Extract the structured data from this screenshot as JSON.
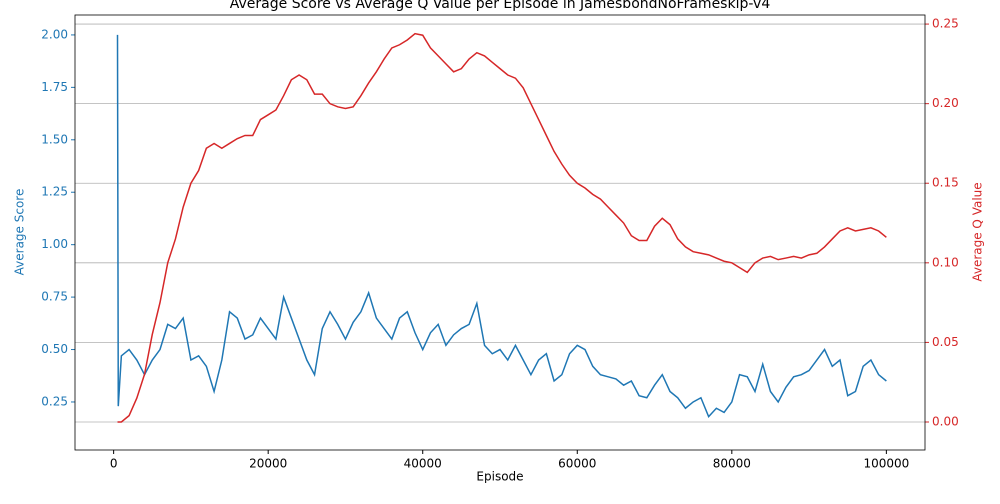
{
  "chart_data": {
    "type": "line",
    "title": "Average Score vs Average Q Value per Episode in JamesbondNoFrameskip-v4",
    "xlabel": "Episode",
    "ylabel": "Average Score",
    "y2label": "Average Q Value",
    "x": [
      500,
      600,
      1000,
      2000,
      3000,
      4000,
      5000,
      6000,
      7000,
      8000,
      9000,
      10000,
      11000,
      12000,
      13000,
      14000,
      15000,
      16000,
      17000,
      18000,
      19000,
      20000,
      21000,
      22000,
      23000,
      24000,
      25000,
      26000,
      27000,
      28000,
      29000,
      30000,
      31000,
      32000,
      33000,
      34000,
      35000,
      36000,
      37000,
      38000,
      39000,
      40000,
      41000,
      42000,
      43000,
      44000,
      45000,
      46000,
      47000,
      48000,
      49000,
      50000,
      51000,
      52000,
      53000,
      54000,
      55000,
      56000,
      57000,
      58000,
      59000,
      60000,
      61000,
      62000,
      63000,
      64000,
      65000,
      66000,
      67000,
      68000,
      69000,
      70000,
      71000,
      72000,
      73000,
      74000,
      75000,
      76000,
      77000,
      78000,
      79000,
      80000,
      81000,
      82000,
      83000,
      84000,
      85000,
      86000,
      87000,
      88000,
      89000,
      90000,
      91000,
      92000,
      93000,
      94000,
      95000,
      96000,
      97000,
      98000,
      99000,
      100000
    ],
    "series": [
      {
        "name": "Average Score",
        "color": "#1f77b4",
        "axis": "y",
        "values": [
          2.0,
          0.23,
          0.47,
          0.5,
          0.45,
          0.38,
          0.45,
          0.5,
          0.62,
          0.6,
          0.65,
          0.45,
          0.47,
          0.42,
          0.3,
          0.45,
          0.68,
          0.65,
          0.55,
          0.57,
          0.65,
          0.6,
          0.55,
          0.75,
          0.65,
          0.55,
          0.45,
          0.38,
          0.6,
          0.68,
          0.62,
          0.55,
          0.63,
          0.68,
          0.77,
          0.65,
          0.6,
          0.55,
          0.65,
          0.68,
          0.58,
          0.5,
          0.58,
          0.62,
          0.52,
          0.57,
          0.6,
          0.62,
          0.72,
          0.52,
          0.48,
          0.5,
          0.45,
          0.52,
          0.45,
          0.38,
          0.45,
          0.48,
          0.35,
          0.38,
          0.48,
          0.52,
          0.5,
          0.42,
          0.38,
          0.37,
          0.36,
          0.33,
          0.35,
          0.28,
          0.27,
          0.33,
          0.38,
          0.3,
          0.27,
          0.22,
          0.25,
          0.27,
          0.18,
          0.22,
          0.2,
          0.25,
          0.38,
          0.37,
          0.3,
          0.43,
          0.3,
          0.25,
          0.32,
          0.37,
          0.38,
          0.4,
          0.45,
          0.5,
          0.42,
          0.45,
          0.28,
          0.3,
          0.42,
          0.45,
          0.38,
          0.35
        ]
      },
      {
        "name": "Average Q Value",
        "color": "#d62728",
        "axis": "y2",
        "values": [
          0.0,
          0.0,
          0.0,
          0.004,
          0.015,
          0.03,
          0.055,
          0.075,
          0.1,
          0.115,
          0.135,
          0.15,
          0.158,
          0.172,
          0.175,
          0.172,
          0.175,
          0.178,
          0.18,
          0.18,
          0.19,
          0.193,
          0.196,
          0.205,
          0.215,
          0.218,
          0.215,
          0.206,
          0.206,
          0.2,
          0.198,
          0.197,
          0.198,
          0.205,
          0.213,
          0.22,
          0.228,
          0.235,
          0.237,
          0.24,
          0.244,
          0.243,
          0.235,
          0.23,
          0.225,
          0.22,
          0.222,
          0.228,
          0.232,
          0.23,
          0.226,
          0.222,
          0.218,
          0.216,
          0.21,
          0.2,
          0.19,
          0.18,
          0.17,
          0.162,
          0.155,
          0.15,
          0.147,
          0.143,
          0.14,
          0.135,
          0.13,
          0.125,
          0.117,
          0.114,
          0.114,
          0.123,
          0.128,
          0.124,
          0.115,
          0.11,
          0.107,
          0.106,
          0.105,
          0.103,
          0.101,
          0.1,
          0.097,
          0.094,
          0.1,
          0.103,
          0.104,
          0.102,
          0.103,
          0.104,
          0.103,
          0.105,
          0.106,
          0.11,
          0.115,
          0.12,
          0.122,
          0.12,
          0.121,
          0.122,
          0.12,
          0.116
        ]
      }
    ],
    "xlim": [
      -5000,
      105000
    ],
    "xticks": [
      0,
      20000,
      40000,
      60000,
      80000,
      100000
    ],
    "ylim": [
      0.021,
      2.095
    ],
    "yticks": [
      {
        "value": 0.25,
        "label": "0.25"
      },
      {
        "value": 0.5,
        "label": "0.50"
      },
      {
        "value": 0.75,
        "label": "0.75"
      },
      {
        "value": 1.0,
        "label": "1.00"
      },
      {
        "value": 1.25,
        "label": "1.25"
      },
      {
        "value": 1.5,
        "label": "1.50"
      },
      {
        "value": 1.75,
        "label": "1.75"
      },
      {
        "value": 2.0,
        "label": "2.00"
      }
    ],
    "y2lim": [
      -0.0176,
      0.2557
    ],
    "y2ticks": [
      {
        "value": 0,
        "label": "0.00"
      },
      {
        "value": 0.05,
        "label": "0.05"
      },
      {
        "value": 0.1,
        "label": "0.10"
      },
      {
        "value": 0.15,
        "label": "0.15"
      },
      {
        "value": 0.2,
        "label": "0.20"
      },
      {
        "value": 0.25,
        "label": "0.25"
      }
    ],
    "grid": "y2"
  }
}
